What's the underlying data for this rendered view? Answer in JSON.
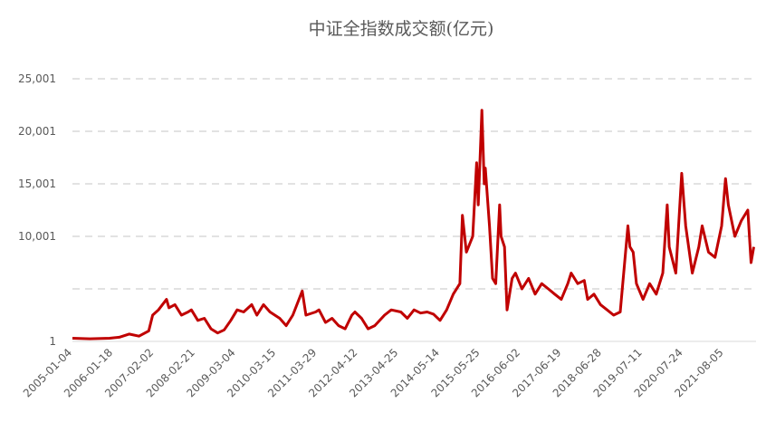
{
  "chart_data": {
    "type": "line",
    "title": "中证全指数成交额(亿元)",
    "x": [
      "2005-01-04",
      "2005-06-15",
      "2005-12-15",
      "2006-03-15",
      "2006-06-15",
      "2006-09-15",
      "2006-12-15",
      "2007-01-20",
      "2007-03-15",
      "2007-05-29",
      "2007-06-20",
      "2007-08-15",
      "2007-10-15",
      "2007-12-15",
      "2008-01-15",
      "2008-03-15",
      "2008-05-15",
      "2008-07-15",
      "2008-09-15",
      "2008-11-15",
      "2009-01-15",
      "2009-03-15",
      "2009-05-15",
      "2009-07-29",
      "2009-09-15",
      "2009-11-15",
      "2010-01-15",
      "2010-04-15",
      "2010-06-15",
      "2010-08-15",
      "2010-11-11",
      "2010-12-15",
      "2011-03-15",
      "2011-04-15",
      "2011-06-15",
      "2011-08-15",
      "2011-10-15",
      "2011-12-15",
      "2012-02-15",
      "2012-03-15",
      "2012-05-15",
      "2012-07-15",
      "2012-09-15",
      "2012-12-15",
      "2013-02-15",
      "2013-05-15",
      "2013-07-15",
      "2013-09-15",
      "2013-11-15",
      "2014-01-15",
      "2014-03-15",
      "2014-05-15",
      "2014-07-15",
      "2014-09-15",
      "2014-11-15",
      "2014-12-09",
      "2015-01-15",
      "2015-03-15",
      "2015-04-20",
      "2015-05-05",
      "2015-05-28",
      "2015-06-08",
      "2015-06-30",
      "2015-07-10",
      "2015-08-18",
      "2015-09-15",
      "2015-10-15",
      "2015-11-20",
      "2015-12-03",
      "2016-01-04",
      "2016-01-28",
      "2016-03-15",
      "2016-04-15",
      "2016-06-15",
      "2016-08-15",
      "2016-10-15",
      "2016-12-15",
      "2017-02-15",
      "2017-04-15",
      "2017-06-15",
      "2017-08-15",
      "2017-09-15",
      "2017-11-15",
      "2018-01-15",
      "2018-02-15",
      "2018-04-15",
      "2018-06-15",
      "2018-08-15",
      "2018-10-15",
      "2018-12-15",
      "2019-02-25",
      "2019-03-15",
      "2019-04-15",
      "2019-05-15",
      "2019-07-15",
      "2019-09-15",
      "2019-11-15",
      "2020-01-15",
      "2020-02-25",
      "2020-03-15",
      "2020-05-15",
      "2020-07-09",
      "2020-08-15",
      "2020-10-15",
      "2020-12-15",
      "2021-01-15",
      "2021-03-15",
      "2021-05-15",
      "2021-07-15",
      "2021-08-20",
      "2021-09-15",
      "2021-11-15",
      "2022-01-15",
      "2022-03-15",
      "2022-04-15",
      "2022-05-10"
    ],
    "values": [
      300,
      250,
      300,
      400,
      700,
      500,
      1000,
      2500,
      3000,
      4000,
      3200,
      3500,
      2500,
      2800,
      3000,
      2000,
      2200,
      1200,
      800,
      1100,
      2000,
      3000,
      2800,
      3500,
      2500,
      3500,
      2800,
      2200,
      1500,
      2500,
      4800,
      2500,
      2800,
      3000,
      1800,
      2200,
      1500,
      1200,
      2500,
      2800,
      2200,
      1200,
      1500,
      2500,
      3000,
      2800,
      2200,
      3000,
      2700,
      2800,
      2600,
      2000,
      3000,
      4500,
      5500,
      12000,
      8500,
      10000,
      17000,
      13000,
      19000,
      22000,
      15000,
      16500,
      11000,
      6000,
      5500,
      13000,
      10000,
      9000,
      3000,
      6000,
      6500,
      5000,
      6000,
      4500,
      5500,
      5000,
      4500,
      4000,
      5500,
      6500,
      5500,
      5800,
      4000,
      4500,
      3500,
      3000,
      2500,
      2800,
      11000,
      9000,
      8500,
      5500,
      4000,
      5500,
      4500,
      6500,
      13000,
      9000,
      6500,
      16000,
      11000,
      6500,
      9000,
      11000,
      8500,
      8000,
      11000,
      15500,
      13000,
      10000,
      11500,
      12500,
      7500,
      9000
    ],
    "color": "#c00000",
    "xlim": [
      "2005-01-04",
      "2022-05-31"
    ],
    "xticks": [
      "2005-01-04",
      "2006-01-18",
      "2007-02-02",
      "2008-02-21",
      "2009-03-04",
      "2010-03-15",
      "2011-03-29",
      "2012-04-12",
      "2013-04-25",
      "2014-05-14",
      "2015-05-25",
      "2016-06-02",
      "2017-06-19",
      "2018-06-28",
      "2019-07-11",
      "2020-07-24",
      "2021-08-05"
    ],
    "ylim": [
      1,
      25001
    ],
    "yticks": [
      1,
      {
        "value": 5001,
        "label": null
      },
      {
        "value": 10001,
        "label": "10,001"
      },
      {
        "value": 15001,
        "label": "15,001"
      },
      {
        "value": 20001,
        "label": "20,001"
      },
      {
        "value": 25001,
        "label": "25,001"
      }
    ],
    "grid": true
  }
}
